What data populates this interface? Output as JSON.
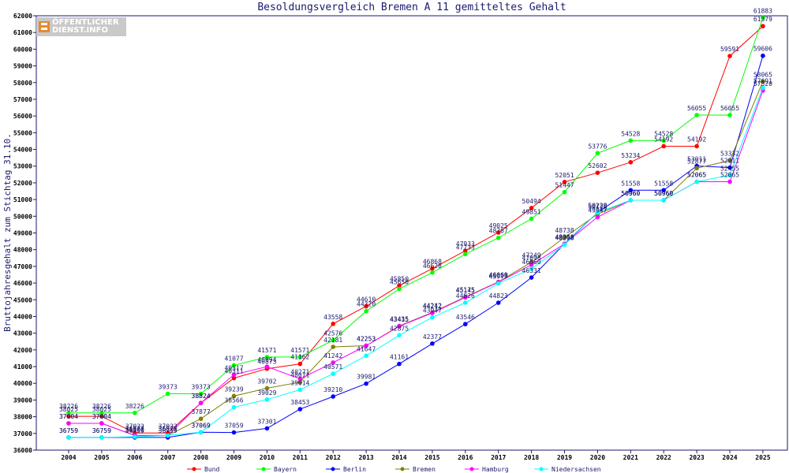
{
  "logo": {
    "line1": "ÖFFENTLICHER",
    "line2": "DIENST.INFO"
  },
  "chart_data": {
    "type": "line",
    "title": "Besoldungsvergleich Bremen A 11 gemitteltes Gehalt",
    "xlabel": "",
    "ylabel": "Bruttojahresgehalt zum Stichtag 31.10.",
    "ylim": [
      36000,
      62000
    ],
    "ytick_step": 1000,
    "grid": false,
    "legend_position": "bottom",
    "categories": [
      "2004",
      "2005",
      "2006",
      "2007",
      "2008",
      "2009",
      "2010",
      "2011",
      "2012",
      "2013",
      "2014",
      "2015",
      "2016",
      "2017",
      "2018",
      "2019",
      "2020",
      "2021",
      "2022",
      "2023",
      "2024",
      "2025"
    ],
    "series": [
      {
        "name": "Bund",
        "color": "#ff0000",
        "values": [
          38025,
          38025,
          37022,
          37022,
          38824,
          40311,
          40873,
          41162,
          43558,
          44610,
          45850,
          46868,
          47933,
          49025,
          50494,
          52051,
          52602,
          53234,
          54192,
          54192,
          59591,
          61379
        ]
      },
      {
        "name": "Bayern",
        "color": "#00ff00",
        "values": [
          38226,
          38226,
          38226,
          39373,
          39373,
          41077,
          41571,
          41571,
          42576,
          44320,
          45650,
          46628,
          47733,
          48707,
          49851,
          51447,
          53776,
          54528,
          54528,
          56055,
          56055,
          61883
        ]
      },
      {
        "name": "Berlin",
        "color": "#0000ff",
        "values": [
          36759,
          36759,
          36759,
          36759,
          37069,
          37059,
          37301,
          38453,
          39210,
          39981,
          41161,
          42377,
          43546,
          44823,
          46331,
          48348,
          50228,
          51558,
          51558,
          53011,
          52911,
          59606
        ]
      },
      {
        "name": "Bremen",
        "color": "#808000",
        "values": [
          37604,
          37604,
          36877,
          36877,
          37877,
          39239,
          39702,
          40071,
          42181,
          42253,
          43435,
          44242,
          45175,
          46069,
          47249,
          48738,
          50128,
          50960,
          50960,
          52877,
          53332,
          58065
        ]
      },
      {
        "name": "Hamburg",
        "color": "#ff00ff",
        "values": [
          37604,
          37604,
          36877,
          36877,
          38824,
          40517,
          40994,
          40271,
          41242,
          42253,
          43415,
          44212,
          45145,
          46056,
          47098,
          48350,
          49947,
          50960,
          50960,
          52065,
          52065,
          57520
        ]
      },
      {
        "name": "Niedersachsen",
        "color": "#00ffff",
        "values": [
          36759,
          36759,
          36800,
          36877,
          37069,
          38566,
          39029,
          39614,
          40571,
          41647,
          42875,
          43947,
          44826,
          45977,
          46860,
          48298,
          50228,
          50960,
          50960,
          52065,
          52455,
          57691
        ]
      }
    ]
  }
}
